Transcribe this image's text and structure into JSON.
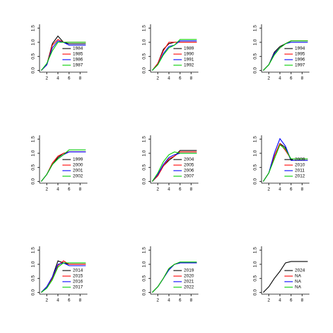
{
  "chart_data": [
    {
      "type": "line",
      "x": [
        1,
        2,
        3,
        4,
        5,
        6,
        7,
        8,
        9
      ],
      "xlim": [
        0.7,
        9.3
      ],
      "ylim": [
        -0.06,
        1.64
      ],
      "xticks": [
        2,
        4,
        6,
        8
      ],
      "yticks": [
        {
          "value": 0,
          "label": "0.0"
        },
        0.5,
        {
          "value": 1,
          "label": "1.0"
        },
        1.5
      ],
      "legend": "bottomright",
      "series": [
        {
          "name": "1984",
          "color": "#000000",
          "values": [
            0,
            0.2,
            0.95,
            1.22,
            1.0,
            0.95,
            0.95,
            0.95,
            0.95
          ]
        },
        {
          "name": "1985",
          "color": "#ff0000",
          "values": [
            0,
            0.2,
            0.9,
            1.1,
            1.0,
            1.0,
            1.0,
            1.0,
            1.0
          ]
        },
        {
          "name": "1986",
          "color": "#0000ff",
          "values": [
            0,
            0.2,
            0.8,
            1.05,
            1.0,
            0.9,
            0.9,
            0.9,
            0.9
          ]
        },
        {
          "name": "1987",
          "color": "#00cd00",
          "values": [
            0,
            0.25,
            0.7,
            1.0,
            1.0,
            1.0,
            1.0,
            1.0,
            1.0
          ]
        }
      ]
    },
    {
      "type": "line",
      "x": [
        1,
        2,
        3,
        4,
        5,
        6,
        7,
        8,
        9
      ],
      "xlim": [
        0.7,
        9.3
      ],
      "ylim": [
        -0.06,
        1.64
      ],
      "xticks": [
        2,
        4,
        6,
        8
      ],
      "yticks": [
        {
          "value": 0,
          "label": "0.0"
        },
        0.5,
        {
          "value": 1,
          "label": "1.0"
        },
        1.5
      ],
      "legend": "bottomright",
      "series": [
        {
          "name": "1989",
          "color": "#000000",
          "values": [
            0,
            0.25,
            0.75,
            0.95,
            1.0,
            1.0,
            1.0,
            1.0,
            1.0
          ]
        },
        {
          "name": "1990",
          "color": "#ff0000",
          "values": [
            0,
            0.25,
            0.7,
            1.0,
            1.0,
            1.0,
            1.0,
            1.0,
            1.0
          ]
        },
        {
          "name": "1991",
          "color": "#0000ff",
          "values": [
            0,
            0.2,
            0.6,
            0.85,
            0.9,
            1.05,
            1.05,
            1.05,
            1.05
          ]
        },
        {
          "name": "1992",
          "color": "#00cd00",
          "values": [
            0,
            0.2,
            0.55,
            0.8,
            0.9,
            1.1,
            1.1,
            1.1,
            1.1
          ]
        }
      ]
    },
    {
      "type": "line",
      "x": [
        1,
        2,
        3,
        4,
        5,
        6,
        7,
        8,
        9
      ],
      "xlim": [
        0.7,
        9.3
      ],
      "ylim": [
        -0.06,
        1.64
      ],
      "xticks": [
        2,
        4,
        6,
        8
      ],
      "yticks": [
        {
          "value": 0,
          "label": "0.0"
        },
        0.5,
        {
          "value": 1,
          "label": "1.0"
        },
        1.5
      ],
      "legend": "bottomright",
      "series": [
        {
          "name": "1994",
          "color": "#000000",
          "values": [
            0,
            0.2,
            0.65,
            0.85,
            0.95,
            1.05,
            1.05,
            1.05,
            1.05
          ]
        },
        {
          "name": "1995",
          "color": "#ff0000",
          "values": [
            0,
            0.2,
            0.6,
            0.8,
            0.95,
            1.05,
            1.05,
            1.05,
            1.05
          ]
        },
        {
          "name": "1996",
          "color": "#0000ff",
          "values": [
            0,
            0.2,
            0.6,
            0.8,
            0.95,
            1.0,
            1.0,
            1.0,
            1.0
          ]
        },
        {
          "name": "1997",
          "color": "#00cd00",
          "values": [
            0,
            0.2,
            0.55,
            0.8,
            0.95,
            1.05,
            1.05,
            1.05,
            1.05
          ]
        }
      ]
    },
    {
      "type": "line",
      "x": [
        1,
        2,
        3,
        4,
        5,
        6,
        7,
        8,
        9
      ],
      "xlim": [
        0.7,
        9.3
      ],
      "ylim": [
        -0.06,
        1.64
      ],
      "xticks": [
        2,
        4,
        6,
        8
      ],
      "yticks": [
        {
          "value": 0,
          "label": "0.0"
        },
        0.5,
        {
          "value": 1,
          "label": "1.0"
        },
        1.5
      ],
      "legend": "bottomright",
      "series": [
        {
          "name": "1999",
          "color": "#000000",
          "values": [
            0,
            0.25,
            0.6,
            0.85,
            1.0,
            1.05,
            1.05,
            1.05,
            1.05
          ]
        },
        {
          "name": "2000",
          "color": "#ff0000",
          "values": [
            0,
            0.25,
            0.65,
            0.9,
            1.0,
            1.05,
            1.05,
            1.05,
            1.05
          ]
        },
        {
          "name": "2001",
          "color": "#0000ff",
          "values": [
            0,
            0.25,
            0.6,
            0.8,
            0.95,
            1.05,
            1.05,
            1.05,
            1.05
          ]
        },
        {
          "name": "2002",
          "color": "#00cd00",
          "values": [
            0,
            0.25,
            0.6,
            0.8,
            0.95,
            1.12,
            1.12,
            1.12,
            1.12
          ]
        }
      ]
    },
    {
      "type": "line",
      "x": [
        1,
        2,
        3,
        4,
        5,
        6,
        7,
        8,
        9
      ],
      "xlim": [
        0.7,
        9.3
      ],
      "ylim": [
        -0.06,
        1.64
      ],
      "xticks": [
        2,
        4,
        6,
        8
      ],
      "yticks": [
        {
          "value": 0,
          "label": "0.0"
        },
        0.5,
        {
          "value": 1,
          "label": "1.0"
        },
        1.5
      ],
      "legend": "bottomright",
      "series": [
        {
          "name": "2004",
          "color": "#000000",
          "values": [
            0,
            0.2,
            0.55,
            0.75,
            0.9,
            1.1,
            1.1,
            1.1,
            1.1
          ]
        },
        {
          "name": "2005",
          "color": "#ff0000",
          "values": [
            0,
            0.2,
            0.55,
            0.8,
            0.9,
            1.05,
            1.05,
            1.05,
            1.05
          ]
        },
        {
          "name": "2006",
          "color": "#0000ff",
          "values": [
            0,
            0.25,
            0.6,
            0.85,
            0.95,
            1.0,
            1.0,
            1.0,
            1.0
          ]
        },
        {
          "name": "2007",
          "color": "#00cd00",
          "values": [
            0,
            0.3,
            0.7,
            0.95,
            1.05,
            1.0,
            1.0,
            1.0,
            1.0
          ]
        }
      ]
    },
    {
      "type": "line",
      "x": [
        1,
        2,
        3,
        4,
        5,
        6,
        7,
        8,
        9
      ],
      "xlim": [
        0.7,
        9.3
      ],
      "ylim": [
        -0.06,
        1.64
      ],
      "xticks": [
        2,
        4,
        6,
        8
      ],
      "yticks": [
        {
          "value": 0,
          "label": "0.0"
        },
        0.5,
        {
          "value": 1,
          "label": "1.0"
        },
        1.5
      ],
      "legend": "bottomright",
      "series": [
        {
          "name": "2009",
          "color": "#000000",
          "values": [
            0,
            0.3,
            0.9,
            1.35,
            1.2,
            0.75,
            0.75,
            0.75,
            0.75
          ]
        },
        {
          "name": "2010",
          "color": "#ff0000",
          "values": [
            0,
            0.3,
            0.9,
            1.35,
            1.1,
            0.8,
            0.8,
            0.8,
            0.8
          ]
        },
        {
          "name": "2011",
          "color": "#0000ff",
          "values": [
            0,
            0.3,
            1.0,
            1.52,
            1.25,
            0.75,
            0.75,
            0.75,
            0.75
          ]
        },
        {
          "name": "2012",
          "color": "#00cd00",
          "values": [
            0,
            0.3,
            0.8,
            1.3,
            1.15,
            0.8,
            0.8,
            0.8,
            0.8
          ]
        }
      ]
    },
    {
      "type": "line",
      "x": [
        1,
        2,
        3,
        4,
        5,
        6,
        7,
        8,
        9
      ],
      "xlim": [
        0.7,
        9.3
      ],
      "ylim": [
        -0.06,
        1.64
      ],
      "xticks": [
        2,
        4,
        6,
        8
      ],
      "yticks": [
        {
          "value": 0,
          "label": "0.0"
        },
        0.5,
        {
          "value": 1,
          "label": "1.0"
        },
        1.5
      ],
      "legend": "bottomright",
      "series": [
        {
          "name": "2014",
          "color": "#000000",
          "values": [
            0,
            0.2,
            0.55,
            1.12,
            1.05,
            1.0,
            1.0,
            1.0,
            1.0
          ]
        },
        {
          "name": "2015",
          "color": "#ff0000",
          "values": [
            0,
            0.2,
            0.5,
            0.95,
            1.12,
            1.0,
            1.0,
            1.0,
            1.0
          ]
        },
        {
          "name": "2016",
          "color": "#0000ff",
          "values": [
            0,
            0.2,
            0.55,
            1.0,
            1.05,
            0.95,
            0.95,
            0.95,
            0.95
          ]
        },
        {
          "name": "2017",
          "color": "#00cd00",
          "values": [
            0,
            0.15,
            0.45,
            0.9,
            1.05,
            1.05,
            1.05,
            1.05,
            1.05
          ]
        }
      ]
    },
    {
      "type": "line",
      "x": [
        1,
        2,
        3,
        4,
        5,
        6,
        7,
        8,
        9
      ],
      "xlim": [
        0.7,
        9.3
      ],
      "ylim": [
        -0.06,
        1.64
      ],
      "xticks": [
        2,
        4,
        6,
        8
      ],
      "yticks": [
        {
          "value": 0,
          "label": "0.0"
        },
        0.5,
        {
          "value": 1,
          "label": "1.0"
        },
        1.5
      ],
      "legend": "bottomright",
      "series": [
        {
          "name": "2019",
          "color": "#000000",
          "values": [
            0,
            0.2,
            0.5,
            0.85,
            1.0,
            1.05,
            1.05,
            1.05,
            1.05
          ]
        },
        {
          "name": "2020",
          "color": "#ff0000",
          "values": [
            0,
            0.2,
            0.5,
            0.85,
            1.0,
            1.05,
            1.05,
            1.05,
            1.05
          ]
        },
        {
          "name": "2021",
          "color": "#0000ff",
          "values": [
            0,
            0.2,
            0.5,
            0.8,
            1.0,
            1.05,
            1.05,
            1.05,
            1.05
          ]
        },
        {
          "name": "2022",
          "color": "#00cd00",
          "values": [
            0,
            0.2,
            0.5,
            0.85,
            1.0,
            1.08,
            1.08,
            1.08,
            1.08
          ]
        }
      ]
    },
    {
      "type": "line",
      "x": [
        1,
        2,
        3,
        4,
        5,
        6,
        7,
        8,
        9
      ],
      "xlim": [
        0.7,
        9.3
      ],
      "ylim": [
        -0.06,
        1.64
      ],
      "xticks": [
        2,
        4,
        6,
        8
      ],
      "yticks": [
        {
          "value": 0,
          "label": "0.0"
        },
        0.5,
        {
          "value": 1,
          "label": "1.0"
        },
        1.5
      ],
      "legend": "bottomright",
      "series": [
        {
          "name": "2024",
          "color": "#000000",
          "values": [
            0,
            0.2,
            0.5,
            0.75,
            1.05,
            1.1,
            1.1,
            1.1,
            1.1
          ]
        },
        {
          "name": "NA",
          "color": "#ff0000",
          "values": [
            null,
            null,
            null,
            null,
            null,
            null,
            null,
            null,
            null
          ]
        },
        {
          "name": "NA",
          "color": "#0000ff",
          "values": [
            null,
            null,
            null,
            null,
            null,
            null,
            null,
            null,
            null
          ]
        },
        {
          "name": "NA",
          "color": "#00cd00",
          "values": [
            null,
            null,
            null,
            null,
            null,
            null,
            null,
            null,
            null
          ]
        }
      ]
    }
  ]
}
